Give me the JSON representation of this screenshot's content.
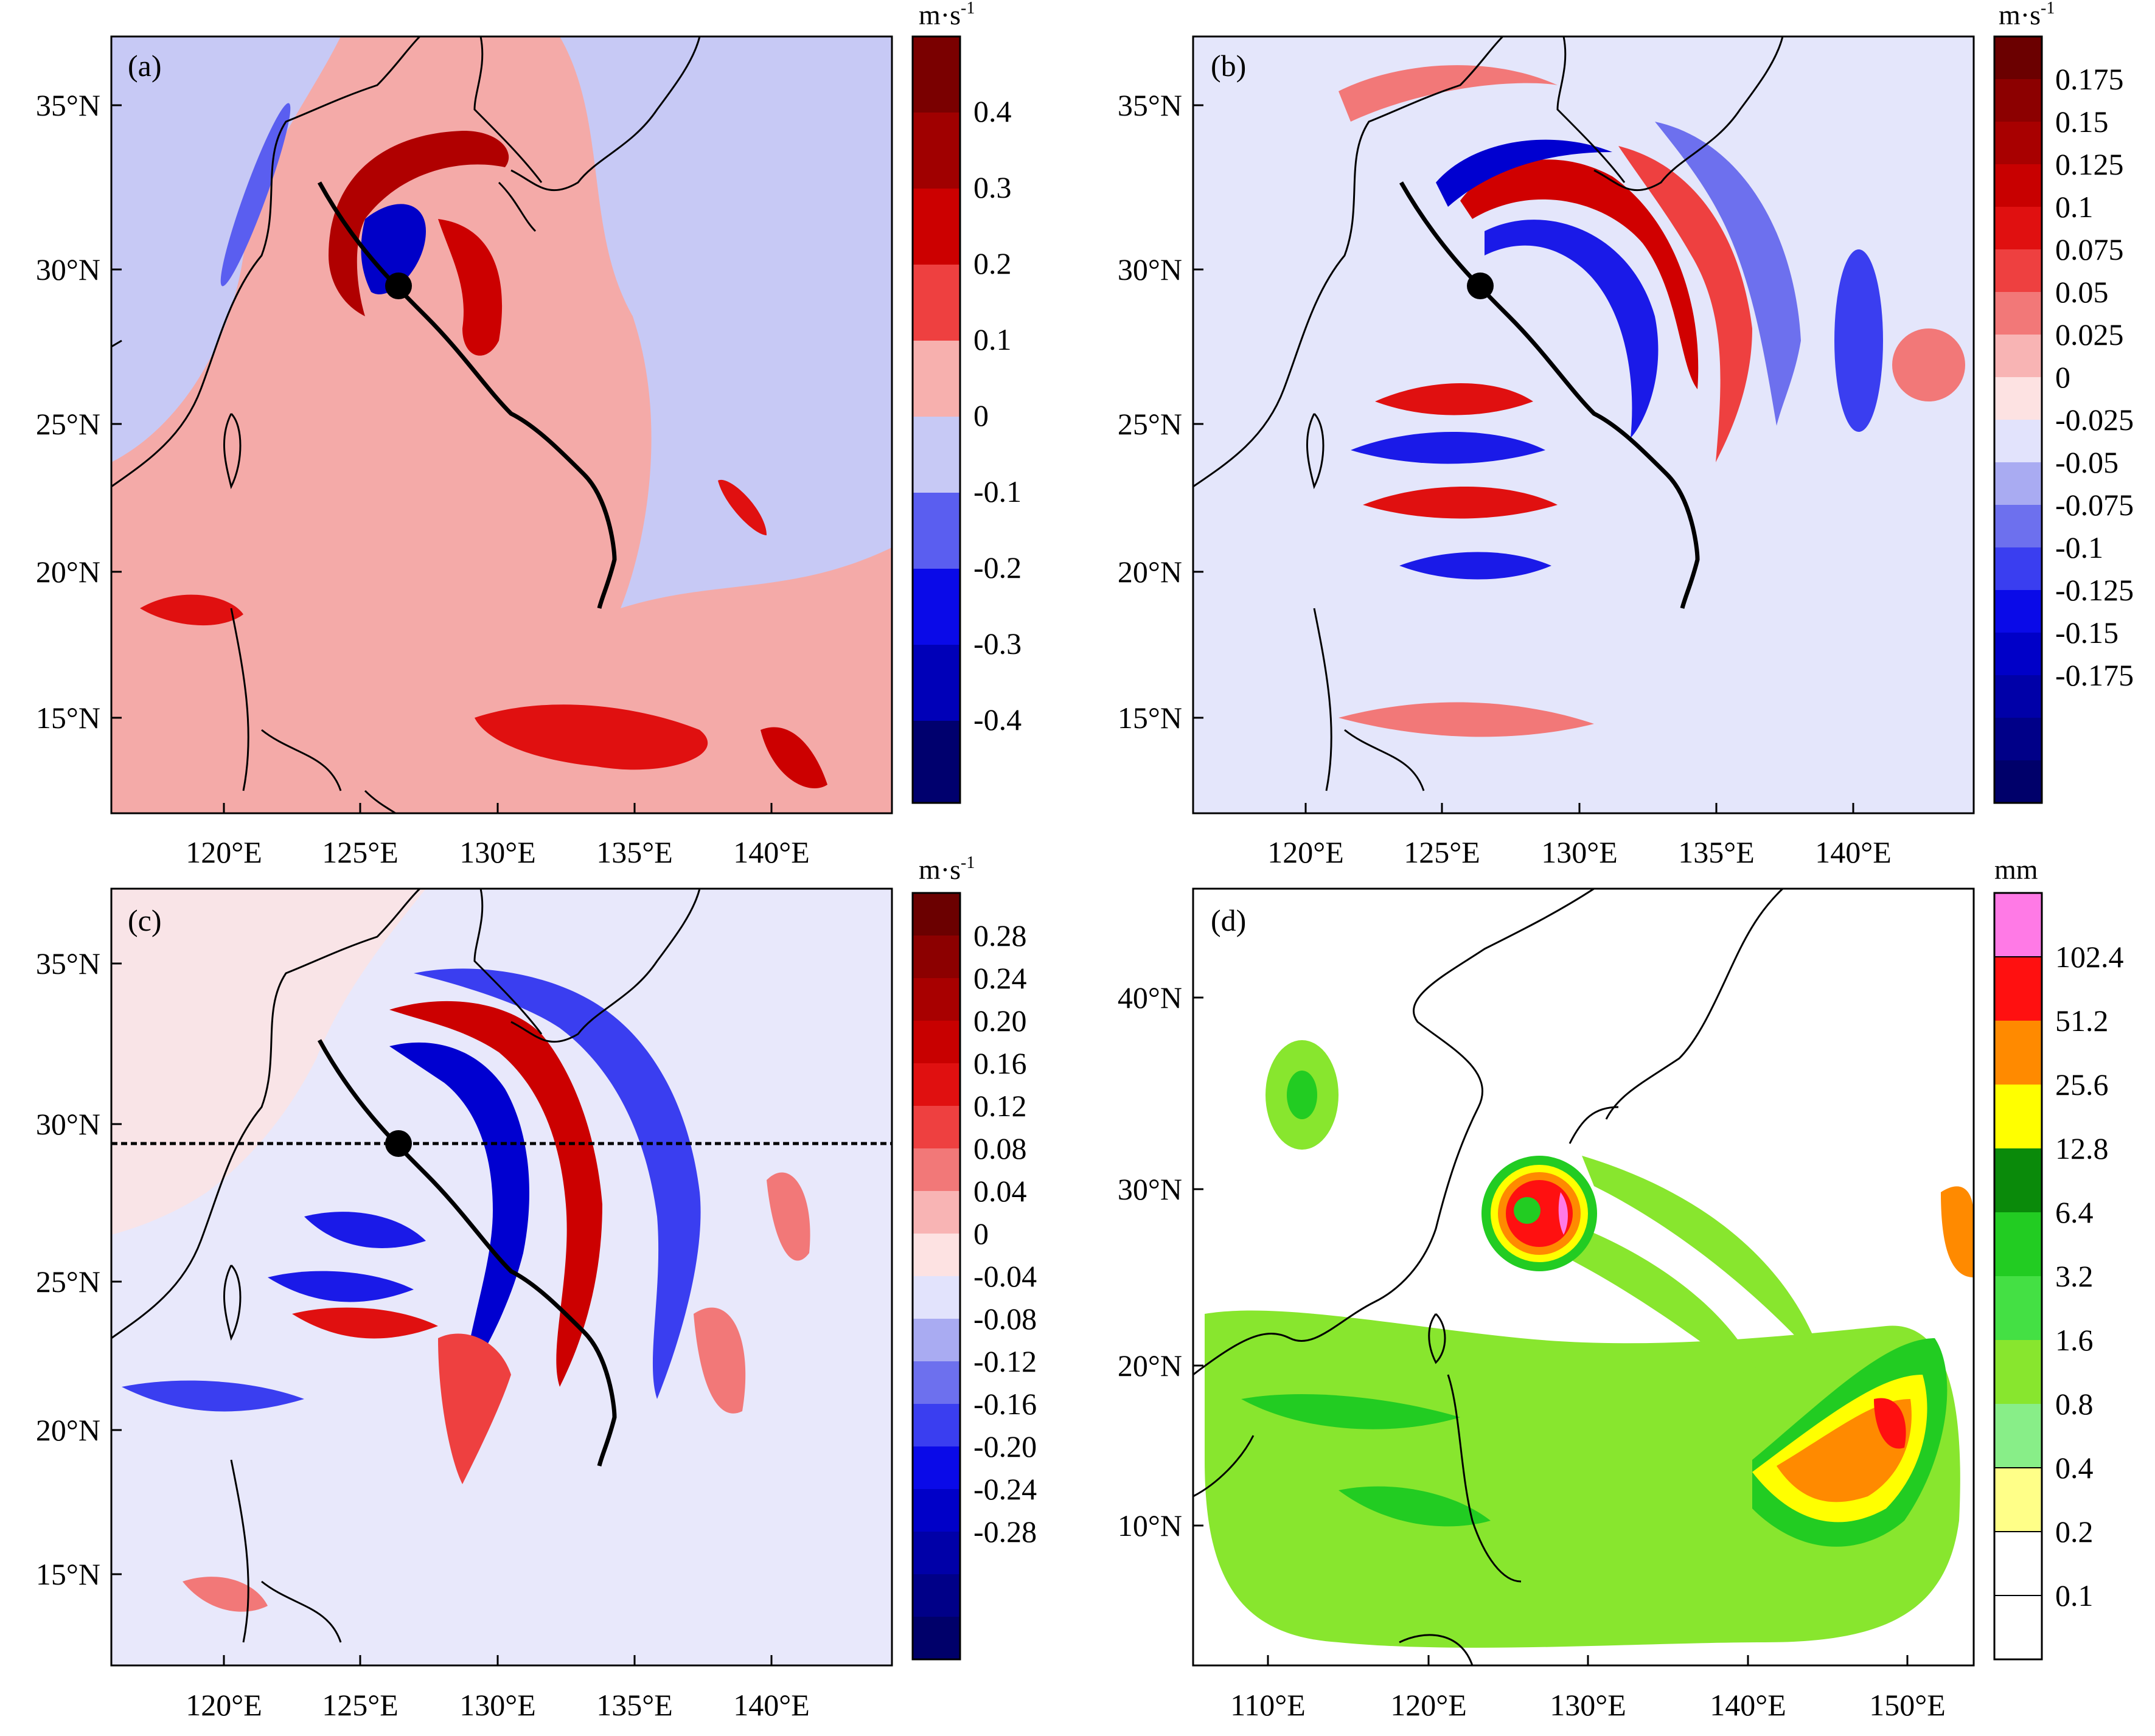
{
  "panels": [
    {
      "id": "a",
      "label": "(a)",
      "unit": "m·s",
      "unit_sup": "-1",
      "lon_ticks": [
        "120°E",
        "125°E",
        "130°E",
        "135°E",
        "140°E"
      ],
      "lat_ticks": [
        "35°N",
        "30°N",
        "25°N",
        "20°N",
        "15°N"
      ],
      "colorbar": [
        "0.4",
        "0.3",
        "0.2",
        "0.1",
        "0",
        "-0.1",
        "-0.2",
        "-0.3",
        "-0.4"
      ],
      "colors": [
        "#7a0000",
        "#a00000",
        "#cc0000",
        "#ee1c1c",
        "#f06666",
        "#f7b0ae",
        "#c7c9f5",
        "#8f92ee",
        "#4c50ee",
        "#0000e6",
        "#0000b8",
        "#000090",
        "#00006e"
      ],
      "background": "#f4aaa8",
      "track": true,
      "typhoon_center": true,
      "transect": false
    },
    {
      "id": "b",
      "label": "(b)",
      "unit": "m·s",
      "unit_sup": "-1",
      "lon_ticks": [
        "120°E",
        "125°E",
        "130°E",
        "135°E",
        "140°E"
      ],
      "lat_ticks": [
        "35°N",
        "30°N",
        "25°N",
        "20°N",
        "15°N"
      ],
      "colorbar": [
        "0.175",
        "0.15",
        "0.125",
        "0.1",
        "0.075",
        "0.05",
        "0.025",
        "0",
        "-0.025",
        "-0.05",
        "-0.075",
        "-0.1",
        "-0.125",
        "-0.15",
        "-0.175"
      ],
      "colors": [
        "#6b0000",
        "#8c0000",
        "#a80000",
        "#c80000",
        "#e01010",
        "#ee4040",
        "#f27878",
        "#f8b4b4",
        "#fde2e2",
        "#e2e3fc",
        "#a9abf2",
        "#6d70ee",
        "#3a3ef0",
        "#0a0ae8",
        "#0000c8",
        "#0000a8",
        "#000088",
        "#00006a"
      ],
      "background": "#e4e6fb",
      "track": true,
      "typhoon_center": true,
      "transect": false
    },
    {
      "id": "c",
      "label": "(c)",
      "unit": "m·s",
      "unit_sup": "-1",
      "lon_ticks": [
        "120°E",
        "125°E",
        "130°E",
        "135°E",
        "140°E"
      ],
      "lat_ticks": [
        "35°N",
        "30°N",
        "25°N",
        "20°N",
        "15°N"
      ],
      "colorbar": [
        "0.28",
        "0.24",
        "0.20",
        "0.16",
        "0.12",
        "0.08",
        "0.04",
        "0",
        "-0.04",
        "-0.08",
        "-0.12",
        "-0.16",
        "-0.20",
        "-0.24",
        "-0.28"
      ],
      "colors": [
        "#6b0000",
        "#8c0000",
        "#a80000",
        "#c80000",
        "#e01010",
        "#ee4040",
        "#f27878",
        "#f8b4b4",
        "#fde2e2",
        "#e2e3fc",
        "#a9abf2",
        "#6d70ee",
        "#3a3ef0",
        "#0a0ae8",
        "#0000c8",
        "#0000a8",
        "#000088",
        "#00006a"
      ],
      "background": "#e8e8fb",
      "track": true,
      "typhoon_center": true,
      "transect": true
    },
    {
      "id": "d",
      "label": "(d)",
      "unit": "mm",
      "unit_sup": "",
      "lon_ticks": [
        "110°E",
        "120°E",
        "130°E",
        "140°E",
        "150°E"
      ],
      "lat_ticks": [
        "40°N",
        "30°N",
        "20°N",
        "10°N"
      ],
      "colorbar": [
        "102.4",
        "51.2",
        "25.6",
        "12.8",
        "6.4",
        "3.2",
        "1.6",
        "0.8",
        "0.4",
        "0.2",
        "0.1"
      ],
      "colors": [
        "#ff7ae6",
        "#ff1010",
        "#ff8a00",
        "#ffff00",
        "#0a8a0a",
        "#22cc22",
        "#44e044",
        "#88e62e",
        "#88ee88",
        "#ffff88",
        "#ffffff",
        "#ffffff"
      ],
      "background": "#ffffff",
      "track": false,
      "typhoon_center": false,
      "transect": false
    }
  ]
}
